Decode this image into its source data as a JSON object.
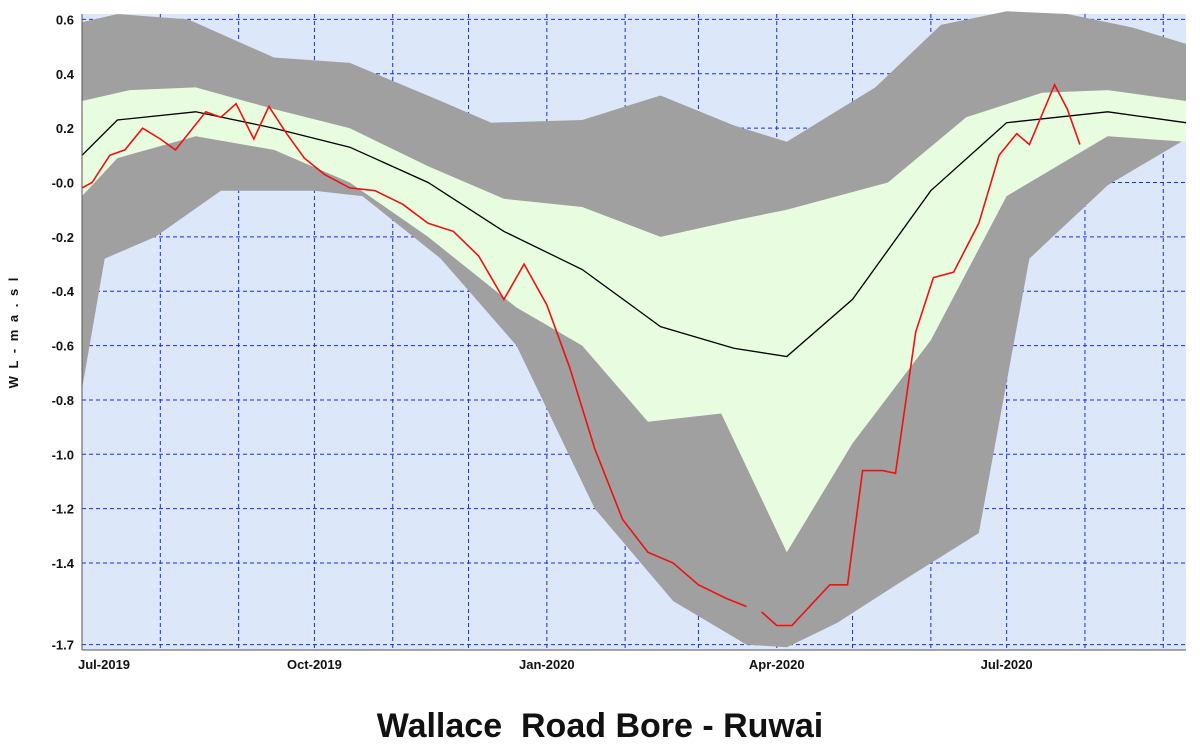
{
  "chart_data": {
    "type": "area",
    "title": "Wallace  Road Bore - Ruwai",
    "xlabel": "",
    "ylabel": "W L  -  m a . s l",
    "x_range": [
      "2019-07-01",
      "2020-09-10"
    ],
    "ylim": [
      -1.72,
      0.62
    ],
    "y_ticks": [
      {
        "value": 0.6,
        "label": "0.6"
      },
      {
        "value": 0.4,
        "label": "0.4"
      },
      {
        "value": 0.2,
        "label": "0.2"
      },
      {
        "value": 0.0,
        "label": "-0.0"
      },
      {
        "value": -0.2,
        "label": "-0.2"
      },
      {
        "value": -0.4,
        "label": "-0.4"
      },
      {
        "value": -0.6,
        "label": "-0.6"
      },
      {
        "value": -0.8,
        "label": "-0.8"
      },
      {
        "value": -1.0,
        "label": "-1.0"
      },
      {
        "value": -1.2,
        "label": "-1.2"
      },
      {
        "value": -1.4,
        "label": "-1.4"
      },
      {
        "value": -1.7,
        "label": "-1.7"
      }
    ],
    "x_ticks": [
      {
        "x": "2019-07-01",
        "label": "Jul-2019"
      },
      {
        "x": "2019-10-01",
        "label": "Oct-2019"
      },
      {
        "x": "2020-01-01",
        "label": "Jan-2020"
      },
      {
        "x": "2020-04-01",
        "label": "Apr-2020"
      },
      {
        "x": "2020-07-01",
        "label": "Jul-2020"
      }
    ],
    "grid": {
      "x_monthly": true,
      "y_ticks": true,
      "style": "dashed",
      "color": "#1a2ee8"
    },
    "colors": {
      "background": "#dce7fa",
      "outer_band": "#a0a0a0",
      "inner_band": "#e8fce0",
      "mean_line": "#000000",
      "observed": "#ee1111",
      "grid": "#1a2ee8"
    },
    "series": [
      {
        "kind": "band",
        "role": "outer-range",
        "upper": [
          {
            "x": "2019-07-01",
            "y": 0.59
          },
          {
            "x": "2019-07-15",
            "y": 0.62
          },
          {
            "x": "2019-08-12",
            "y": 0.6
          },
          {
            "x": "2019-09-15",
            "y": 0.46
          },
          {
            "x": "2019-10-15",
            "y": 0.44
          },
          {
            "x": "2019-11-20",
            "y": 0.3
          },
          {
            "x": "2019-12-10",
            "y": 0.22
          },
          {
            "x": "2020-01-15",
            "y": 0.23
          },
          {
            "x": "2020-02-15",
            "y": 0.32
          },
          {
            "x": "2020-03-15",
            "y": 0.21
          },
          {
            "x": "2020-04-05",
            "y": 0.15
          },
          {
            "x": "2020-05-10",
            "y": 0.35
          },
          {
            "x": "2020-06-05",
            "y": 0.58
          },
          {
            "x": "2020-07-01",
            "y": 0.63
          },
          {
            "x": "2020-07-25",
            "y": 0.62
          },
          {
            "x": "2020-08-20",
            "y": 0.57
          },
          {
            "x": "2020-09-10",
            "y": 0.51
          }
        ],
        "lower": [
          {
            "x": "2019-07-01",
            "y": -0.76
          },
          {
            "x": "2019-07-10",
            "y": -0.28
          },
          {
            "x": "2019-07-30",
            "y": -0.2
          },
          {
            "x": "2019-08-25",
            "y": -0.03
          },
          {
            "x": "2019-10-01",
            "y": -0.03
          },
          {
            "x": "2019-10-20",
            "y": -0.05
          },
          {
            "x": "2019-11-20",
            "y": -0.28
          },
          {
            "x": "2019-12-20",
            "y": -0.6
          },
          {
            "x": "2020-01-20",
            "y": -1.2
          },
          {
            "x": "2020-02-20",
            "y": -1.54
          },
          {
            "x": "2020-03-20",
            "y": -1.7
          },
          {
            "x": "2020-04-05",
            "y": -1.71
          },
          {
            "x": "2020-04-25",
            "y": -1.62
          },
          {
            "x": "2020-05-20",
            "y": -1.47
          },
          {
            "x": "2020-06-20",
            "y": -1.29
          },
          {
            "x": "2020-07-10",
            "y": -0.28
          },
          {
            "x": "2020-08-10",
            "y": -0.01
          },
          {
            "x": "2020-09-10",
            "y": 0.16
          }
        ]
      },
      {
        "kind": "band",
        "role": "inner-range",
        "upper": [
          {
            "x": "2019-07-01",
            "y": 0.3
          },
          {
            "x": "2019-07-20",
            "y": 0.34
          },
          {
            "x": "2019-08-15",
            "y": 0.35
          },
          {
            "x": "2019-09-15",
            "y": 0.27
          },
          {
            "x": "2019-10-15",
            "y": 0.2
          },
          {
            "x": "2019-11-15",
            "y": 0.06
          },
          {
            "x": "2019-12-15",
            "y": -0.06
          },
          {
            "x": "2020-01-15",
            "y": -0.09
          },
          {
            "x": "2020-02-15",
            "y": -0.2
          },
          {
            "x": "2020-03-15",
            "y": -0.14
          },
          {
            "x": "2020-04-05",
            "y": -0.1
          },
          {
            "x": "2020-05-15",
            "y": 0.0
          },
          {
            "x": "2020-06-15",
            "y": 0.24
          },
          {
            "x": "2020-07-15",
            "y": 0.33
          },
          {
            "x": "2020-08-10",
            "y": 0.34
          },
          {
            "x": "2020-09-10",
            "y": 0.3
          }
        ],
        "lower": [
          {
            "x": "2019-07-01",
            "y": -0.05
          },
          {
            "x": "2019-07-15",
            "y": 0.09
          },
          {
            "x": "2019-08-15",
            "y": 0.17
          },
          {
            "x": "2019-09-15",
            "y": 0.12
          },
          {
            "x": "2019-10-15",
            "y": 0.0
          },
          {
            "x": "2019-11-15",
            "y": -0.2
          },
          {
            "x": "2019-12-20",
            "y": -0.46
          },
          {
            "x": "2020-01-15",
            "y": -0.6
          },
          {
            "x": "2020-02-10",
            "y": -0.88
          },
          {
            "x": "2020-03-10",
            "y": -0.85
          },
          {
            "x": "2020-04-05",
            "y": -1.36
          },
          {
            "x": "2020-05-01",
            "y": -0.96
          },
          {
            "x": "2020-06-01",
            "y": -0.58
          },
          {
            "x": "2020-07-01",
            "y": -0.05
          },
          {
            "x": "2020-08-10",
            "y": 0.17
          },
          {
            "x": "2020-09-10",
            "y": 0.15
          }
        ]
      },
      {
        "kind": "line",
        "role": "mean",
        "points": [
          {
            "x": "2019-07-01",
            "y": 0.1
          },
          {
            "x": "2019-07-15",
            "y": 0.23
          },
          {
            "x": "2019-08-15",
            "y": 0.26
          },
          {
            "x": "2019-09-15",
            "y": 0.2
          },
          {
            "x": "2019-10-15",
            "y": 0.13
          },
          {
            "x": "2019-11-15",
            "y": 0.0
          },
          {
            "x": "2019-12-15",
            "y": -0.18
          },
          {
            "x": "2020-01-15",
            "y": -0.32
          },
          {
            "x": "2020-02-15",
            "y": -0.53
          },
          {
            "x": "2020-03-15",
            "y": -0.61
          },
          {
            "x": "2020-04-05",
            "y": -0.64
          },
          {
            "x": "2020-05-01",
            "y": -0.43
          },
          {
            "x": "2020-06-01",
            "y": -0.03
          },
          {
            "x": "2020-07-01",
            "y": 0.22
          },
          {
            "x": "2020-08-10",
            "y": 0.26
          },
          {
            "x": "2020-09-10",
            "y": 0.22
          }
        ]
      },
      {
        "kind": "line",
        "role": "observed",
        "points": [
          {
            "x": "2019-07-01",
            "y": -0.02
          },
          {
            "x": "2019-07-05",
            "y": 0.0
          },
          {
            "x": "2019-07-12",
            "y": 0.1
          },
          {
            "x": "2019-07-18",
            "y": 0.12
          },
          {
            "x": "2019-07-25",
            "y": 0.2
          },
          {
            "x": "2019-08-01",
            "y": 0.16
          },
          {
            "x": "2019-08-07",
            "y": 0.12
          },
          {
            "x": "2019-08-13",
            "y": 0.19
          },
          {
            "x": "2019-08-19",
            "y": 0.26
          },
          {
            "x": "2019-08-25",
            "y": 0.24
          },
          {
            "x": "2019-08-31",
            "y": 0.29
          },
          {
            "x": "2019-09-07",
            "y": 0.16
          },
          {
            "x": "2019-09-13",
            "y": 0.28
          },
          {
            "x": "2019-09-20",
            "y": 0.18
          },
          {
            "x": "2019-09-27",
            "y": 0.09
          },
          {
            "x": "2019-10-05",
            "y": 0.03
          },
          {
            "x": "2019-10-15",
            "y": -0.02
          },
          {
            "x": "2019-10-25",
            "y": -0.03
          },
          {
            "x": "2019-11-05",
            "y": -0.08
          },
          {
            "x": "2019-11-15",
            "y": -0.15
          },
          {
            "x": "2019-11-25",
            "y": -0.18
          },
          {
            "x": "2019-12-05",
            "y": -0.27
          },
          {
            "x": "2019-12-15",
            "y": -0.43
          },
          {
            "x": "2019-12-23",
            "y": -0.3
          },
          {
            "x": "2020-01-01",
            "y": -0.45
          },
          {
            "x": "2020-01-10",
            "y": -0.68
          },
          {
            "x": "2020-01-20",
            "y": -0.98
          },
          {
            "x": "2020-01-31",
            "y": -1.24
          },
          {
            "x": "2020-02-10",
            "y": -1.36
          },
          {
            "x": "2020-02-20",
            "y": -1.4
          },
          {
            "x": "2020-03-01",
            "y": -1.48
          },
          {
            "x": "2020-03-12",
            "y": -1.53
          },
          {
            "x": "2020-03-20",
            "y": -1.56
          },
          {
            "x": "2020-03-22",
            "y": null
          },
          {
            "x": "2020-03-26",
            "y": -1.58
          },
          {
            "x": "2020-04-01",
            "y": -1.63
          },
          {
            "x": "2020-04-07",
            "y": -1.63
          },
          {
            "x": "2020-04-15",
            "y": -1.55
          },
          {
            "x": "2020-04-22",
            "y": -1.48
          },
          {
            "x": "2020-04-29",
            "y": -1.48
          },
          {
            "x": "2020-05-05",
            "y": -1.06
          },
          {
            "x": "2020-05-13",
            "y": -1.06
          },
          {
            "x": "2020-05-18",
            "y": -1.07
          },
          {
            "x": "2020-05-26",
            "y": -0.55
          },
          {
            "x": "2020-06-02",
            "y": -0.35
          },
          {
            "x": "2020-06-10",
            "y": -0.33
          },
          {
            "x": "2020-06-20",
            "y": -0.15
          },
          {
            "x": "2020-06-28",
            "y": 0.1
          },
          {
            "x": "2020-07-05",
            "y": 0.18
          },
          {
            "x": "2020-07-10",
            "y": 0.14
          },
          {
            "x": "2020-07-20",
            "y": 0.36
          },
          {
            "x": "2020-07-25",
            "y": 0.27
          },
          {
            "x": "2020-07-30",
            "y": 0.14
          }
        ]
      }
    ]
  }
}
